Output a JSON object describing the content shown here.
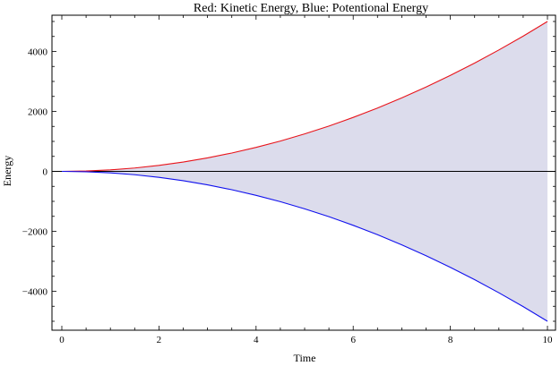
{
  "chart_data": {
    "type": "area",
    "title": "Red: Kinetic Energy, Blue: Potentional Energy",
    "xlabel": "Time",
    "ylabel": "Energy",
    "xlim": [
      0,
      10
    ],
    "ylim": [
      -5200,
      5200
    ],
    "x_ticks": [
      0,
      2,
      4,
      6,
      8,
      10
    ],
    "y_ticks": [
      -4000,
      -2000,
      0,
      2000,
      4000
    ],
    "x_tick_labels": [
      "0",
      "2",
      "4",
      "6",
      "8",
      "10"
    ],
    "y_tick_labels": [
      "−4000",
      "−2000",
      "0",
      "2000",
      "4000"
    ],
    "grid": false,
    "legend": "none",
    "fill_between_series": true,
    "colors": {
      "kinetic": "#e8141b",
      "potential": "#1010ee",
      "fill": "#dcdcec",
      "zero_line": "#000000"
    },
    "x": [
      0,
      0.5,
      1,
      1.5,
      2,
      2.5,
      3,
      3.5,
      4,
      4.5,
      5,
      5.5,
      6,
      6.5,
      7,
      7.5,
      8,
      8.5,
      9,
      9.5,
      10
    ],
    "series": [
      {
        "values": [
          0,
          12,
          50,
          112,
          200,
          312,
          450,
          612,
          800,
          1012,
          1250,
          1512,
          1800,
          2112,
          2450,
          2812,
          3200,
          3612,
          4050,
          4512,
          5000
        ]
      },
      {
        "values": [
          0,
          -12,
          -50,
          -112,
          -200,
          -312,
          -450,
          -612,
          -800,
          -1012,
          -1250,
          -1512,
          -1800,
          -2112,
          -2450,
          -2812,
          -3200,
          -3612,
          -4050,
          -4512,
          -5000
        ]
      }
    ]
  }
}
